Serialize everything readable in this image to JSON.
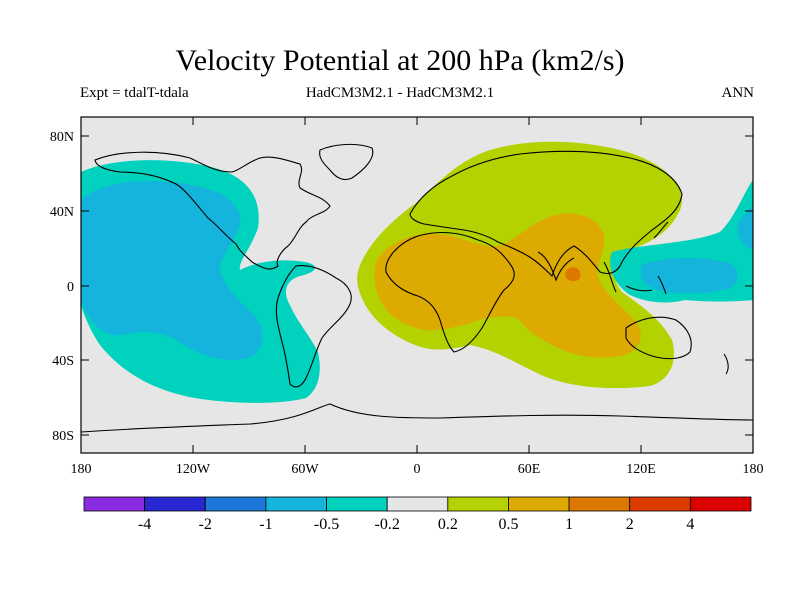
{
  "title": "Velocity Potential at 200 hPa (km2/s)",
  "subtitle_left": "Expt = tdalT-tdala",
  "subtitle_center": "HadCM3M2.1 - HadCM3M2.1",
  "subtitle_right": "ANN",
  "map": {
    "lat_ticks": [
      "80N",
      "40N",
      "0",
      "40S",
      "80S"
    ],
    "lon_ticks": [
      "180",
      "120W",
      "60W",
      "0",
      "60E",
      "120E",
      "180"
    ]
  },
  "colorbar": {
    "colors": [
      "#8a2be2",
      "#2828d2",
      "#1e78dc",
      "#14b4dc",
      "#00d2be",
      "#e6e6e6",
      "#b4d200",
      "#dcaa00",
      "#dc7800",
      "#dc3c00",
      "#dc0000"
    ],
    "labels": [
      "-4",
      "-2",
      "-1",
      "-0.5",
      "-0.2",
      "0.2",
      "0.5",
      "1",
      "2",
      "4"
    ]
  },
  "colors": {
    "land_background": "#e6e6e6",
    "negative_weak": "#00d2be",
    "negative_strong": "#14b4dc",
    "positive_weak": "#b4d200",
    "positive_mid": "#dcaa00",
    "positive_strong": "#dc7800"
  }
}
